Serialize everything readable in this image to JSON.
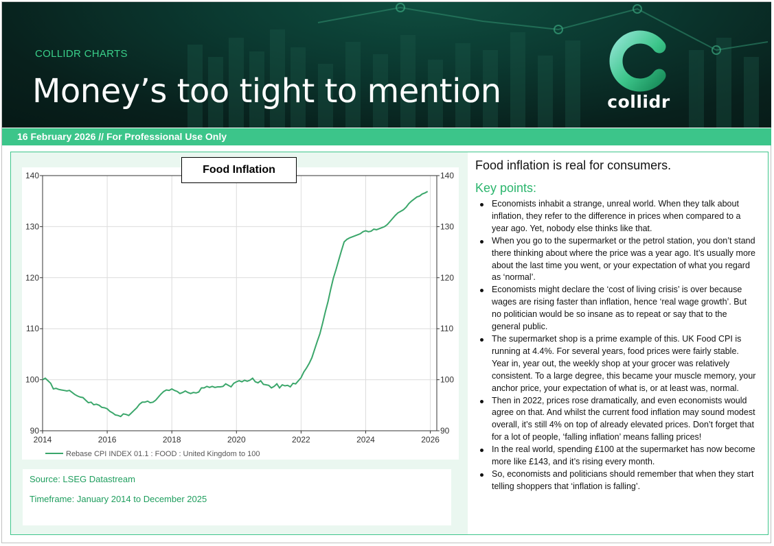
{
  "header": {
    "kicker": "COLLIDR CHARTS",
    "title": "Money’s too tight to mention",
    "logo_text": "collidr"
  },
  "dateline": "16 February 2026 // For Professional Use Only",
  "chart_data": {
    "type": "line",
    "title": "Food Inflation",
    "xlabel": "",
    "ylabel": "",
    "xlim": [
      2014,
      2026.2
    ],
    "ylim": [
      90,
      140
    ],
    "x_ticks": [
      2014,
      2016,
      2018,
      2020,
      2022,
      2024,
      2026
    ],
    "y_ticks": [
      90,
      100,
      110,
      120,
      130,
      140
    ],
    "grid": true,
    "legend_position": "bottom-left",
    "series": [
      {
        "name": "Rebase CPI INDEX 01.1 : FOOD : United Kingdom to 100",
        "color": "#3aa66a",
        "x": [
          2014.0,
          2014.083,
          2014.167,
          2014.25,
          2014.333,
          2014.417,
          2014.5,
          2014.583,
          2014.667,
          2014.75,
          2014.833,
          2014.917,
          2015.0,
          2015.083,
          2015.167,
          2015.25,
          2015.333,
          2015.417,
          2015.5,
          2015.583,
          2015.667,
          2015.75,
          2015.833,
          2015.917,
          2016.0,
          2016.083,
          2016.167,
          2016.25,
          2016.333,
          2016.417,
          2016.5,
          2016.583,
          2016.667,
          2016.75,
          2016.833,
          2016.917,
          2017.0,
          2017.083,
          2017.167,
          2017.25,
          2017.333,
          2017.417,
          2017.5,
          2017.583,
          2017.667,
          2017.75,
          2017.833,
          2017.917,
          2018.0,
          2018.083,
          2018.167,
          2018.25,
          2018.333,
          2018.417,
          2018.5,
          2018.583,
          2018.667,
          2018.75,
          2018.833,
          2018.917,
          2019.0,
          2019.083,
          2019.167,
          2019.25,
          2019.333,
          2019.417,
          2019.5,
          2019.583,
          2019.667,
          2019.75,
          2019.833,
          2019.917,
          2020.0,
          2020.083,
          2020.167,
          2020.25,
          2020.333,
          2020.417,
          2020.5,
          2020.583,
          2020.667,
          2020.75,
          2020.833,
          2020.917,
          2021.0,
          2021.083,
          2021.167,
          2021.25,
          2021.333,
          2021.417,
          2021.5,
          2021.583,
          2021.667,
          2021.75,
          2021.833,
          2021.917,
          2022.0,
          2022.083,
          2022.167,
          2022.25,
          2022.333,
          2022.417,
          2022.5,
          2022.583,
          2022.667,
          2022.75,
          2022.833,
          2022.917,
          2023.0,
          2023.083,
          2023.167,
          2023.25,
          2023.333,
          2023.417,
          2023.5,
          2023.583,
          2023.667,
          2023.75,
          2023.833,
          2023.917,
          2024.0,
          2024.083,
          2024.167,
          2024.25,
          2024.333,
          2024.417,
          2024.5,
          2024.583,
          2024.667,
          2024.75,
          2024.833,
          2024.917,
          2025.0,
          2025.083,
          2025.167,
          2025.25,
          2025.333,
          2025.417,
          2025.5,
          2025.583,
          2025.667,
          2025.75,
          2025.833,
          2025.917
        ],
        "values": [
          100.0,
          100.3,
          99.8,
          99.3,
          98.2,
          98.3,
          98.1,
          98.0,
          97.9,
          97.8,
          97.9,
          97.5,
          97.1,
          96.8,
          96.6,
          96.5,
          96.0,
          95.5,
          95.6,
          95.1,
          95.2,
          95.0,
          94.6,
          94.5,
          94.3,
          93.8,
          93.5,
          93.1,
          93.0,
          92.8,
          93.3,
          93.2,
          93.0,
          93.5,
          94.0,
          94.5,
          95.2,
          95.6,
          95.6,
          95.8,
          95.5,
          95.6,
          96.0,
          96.6,
          97.2,
          97.7,
          98.0,
          97.9,
          98.2,
          97.9,
          97.7,
          97.3,
          97.5,
          97.8,
          97.5,
          97.3,
          97.5,
          97.4,
          97.6,
          98.4,
          98.4,
          98.7,
          98.5,
          98.7,
          98.5,
          98.6,
          98.6,
          98.7,
          99.2,
          98.9,
          98.6,
          99.3,
          99.6,
          99.8,
          99.6,
          99.9,
          99.7,
          99.9,
          100.3,
          99.6,
          99.4,
          99.8,
          99.1,
          99.0,
          98.9,
          98.4,
          98.7,
          99.2,
          98.4,
          99.0,
          98.8,
          98.9,
          98.6,
          99.3,
          99.2,
          99.8,
          100.4,
          101.5,
          102.3,
          103.2,
          104.3,
          105.9,
          107.5,
          109.0,
          111.1,
          113.3,
          115.3,
          117.7,
          119.9,
          121.6,
          123.5,
          125.3,
          127.0,
          127.5,
          127.8,
          128.0,
          128.2,
          128.4,
          128.6,
          129.0,
          129.2,
          129.0,
          129.1,
          129.5,
          129.4,
          129.6,
          129.8,
          130.0,
          130.4,
          131.0,
          131.6,
          132.2,
          132.7,
          133.0,
          133.3,
          133.8,
          134.5,
          135.0,
          135.4,
          135.8,
          136.0,
          136.4,
          136.6,
          136.9
        ]
      }
    ]
  },
  "source": {
    "source_text": "Source:  LSEG Datastream",
    "timeframe_text": "Timeframe:  January 2014 to December 2025"
  },
  "commentary": {
    "lead": "Food inflation is real for consumers.",
    "key_points_title": "Key points:",
    "points": [
      "Economists inhabit a strange, unreal world. When they talk about inflation, they refer to the difference in prices when compared to a year ago. Yet, nobody else thinks like that.",
      "When you go to the supermarket or the petrol station, you don’t stand there thinking about where the price was a year ago.  It’s usually more about the last time you went, or your expectation of what you regard as ‘normal’.",
      "Economists might declare the ‘cost of living crisis’ is over because wages are rising faster than inflation, hence ‘real wage growth’.  But no politician would be so insane as to repeat or say that to the general public.",
      "The supermarket shop is a prime example of this.  UK Food CPI is running at 4.4%. For several years, food prices were fairly stable. Year in, year out, the weekly shop at your grocer was relatively consistent. To a large degree, this became your muscle memory, your anchor price, your expectation of what is, or at least was, normal.",
      "Then in 2022, prices rose dramatically, and even economists would agree on that. And whilst the current food inflation may sound modest overall, it’s still 4% on top of already elevated prices. Don’t forget that for a lot of people, ‘falling inflation’ means falling prices!",
      "In the real world, spending £100 at the supermarket has now become more like £143, and it’s rising every month.",
      "So, economists and politicians should remember that when they start telling shoppers that ‘inflation is falling’."
    ]
  },
  "colors": {
    "brand_green": "#3cc58a",
    "line_green": "#3aa66a",
    "banner_dark": "#0b3a31"
  }
}
